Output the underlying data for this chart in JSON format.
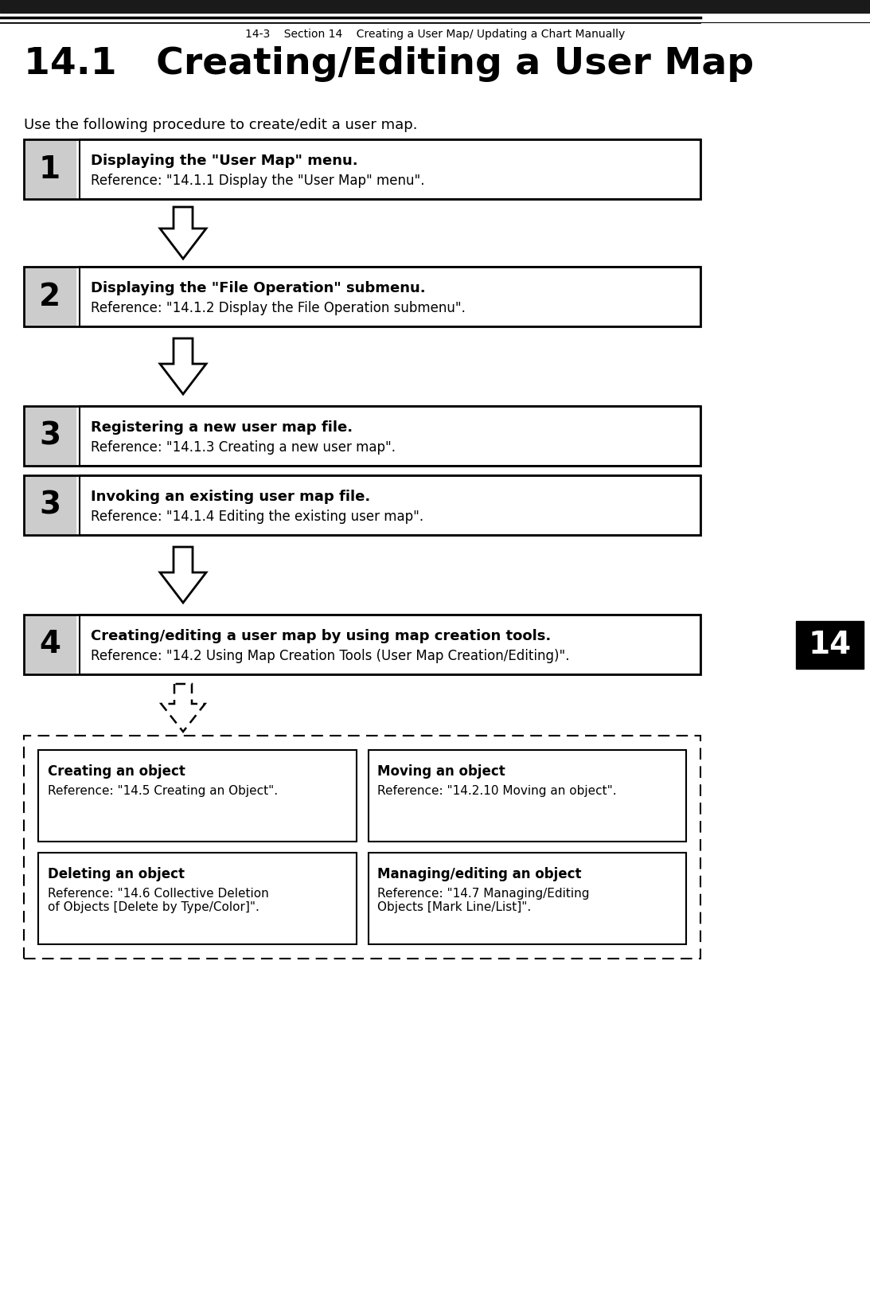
{
  "title": "14.1   Creating/Editing a User Map",
  "subtitle": "Use the following procedure to create/edit a user map.",
  "header_bar_color": "#1a1a1a",
  "header_text": "14-3    Section 14    Creating a User Map/ Updating a Chart Manually",
  "steps": [
    {
      "number": "1",
      "bold_text": "Displaying the \"User Map\" menu.",
      "ref_text": "Reference: \"14.1.1 Display the \"User Map\" menu\"."
    },
    {
      "number": "2",
      "bold_text": "Displaying the \"File Operation\" submenu.",
      "ref_text": "Reference: \"14.1.2 Display the File Operation submenu\"."
    },
    {
      "number": "3",
      "bold_text": "Registering a new user map file.",
      "ref_text": "Reference: \"14.1.3 Creating a new user map\"."
    },
    {
      "number": "3",
      "bold_text": "Invoking an existing user map file.",
      "ref_text": "Reference: \"14.1.4 Editing the existing user map\"."
    },
    {
      "number": "4",
      "bold_text": "Creating/editing a user map by using map creation tools.",
      "ref_text": "Reference: \"14.2 Using Map Creation Tools (User Map Creation/Editing)\"."
    }
  ],
  "sub_boxes": [
    {
      "title": "Creating an object",
      "ref": "Reference: \"14.5 Creating an Object\".",
      "col": 0,
      "row": 0
    },
    {
      "title": "Moving an object",
      "ref": "Reference: \"14.2.10 Moving an object\".",
      "col": 1,
      "row": 0
    },
    {
      "title": "Deleting an object",
      "ref": "Reference: \"14.6 Collective Deletion\nof Objects [Delete by Type/Color]\".",
      "col": 0,
      "row": 1
    },
    {
      "title": "Managing/editing an object",
      "ref": "Reference: \"14.7 Managing/Editing\nObjects [Mark Line/List]\".",
      "col": 1,
      "row": 1
    }
  ],
  "tab_number": "14",
  "bg_color": "#ffffff",
  "step_num_bg": "#cccccc",
  "box_border_color": "#000000"
}
